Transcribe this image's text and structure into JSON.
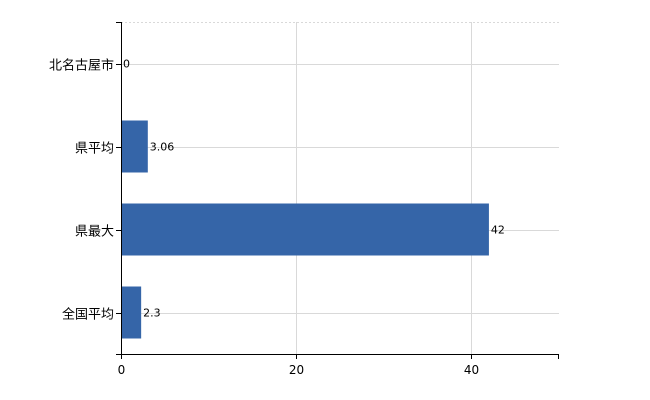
{
  "chart_data": {
    "type": "bar",
    "orientation": "horizontal",
    "categories": [
      "北名古屋市",
      "県平均",
      "県最大",
      "全国平均"
    ],
    "values": [
      0,
      3.06,
      42,
      2.3
    ],
    "value_labels": [
      "0",
      "3.06",
      "42",
      "2.3"
    ],
    "xlim": [
      0,
      50
    ],
    "x_ticks": [
      0,
      20,
      40
    ],
    "x_tick_labels": [
      "0",
      "20",
      "40"
    ],
    "grid": true,
    "bar_color": "#3565a8",
    "title": "",
    "xlabel": "",
    "ylabel": ""
  }
}
